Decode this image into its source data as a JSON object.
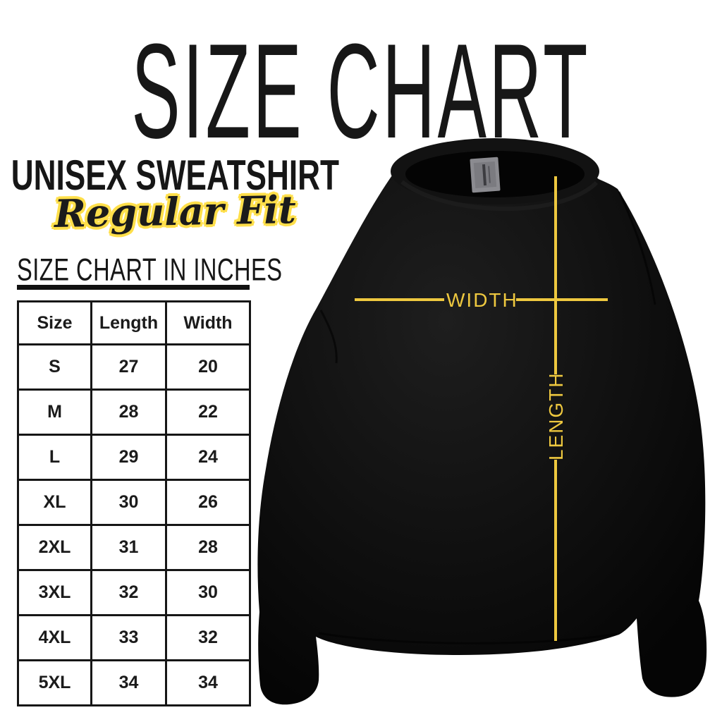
{
  "page": {
    "title": "SIZE CHART"
  },
  "product": {
    "name": "UNISEX SWEATSHIRT",
    "fit": "Regular Fit"
  },
  "table": {
    "heading": "SIZE CHART IN INCHES",
    "columns": [
      "Size",
      "Length",
      "Width"
    ],
    "rows": [
      [
        "S",
        "27",
        "20"
      ],
      [
        "M",
        "28",
        "22"
      ],
      [
        "L",
        "29",
        "24"
      ],
      [
        "XL",
        "30",
        "26"
      ],
      [
        "2XL",
        "31",
        "28"
      ],
      [
        "3XL",
        "32",
        "30"
      ],
      [
        "4XL",
        "33",
        "32"
      ],
      [
        "5XL",
        "34",
        "34"
      ]
    ]
  },
  "diagram": {
    "width_label": "WIDTH",
    "length_label": "LENGTH",
    "line_color": "#eec83f",
    "shirt_color": "#0d0d0d",
    "tag_color": "#8b8b90"
  }
}
